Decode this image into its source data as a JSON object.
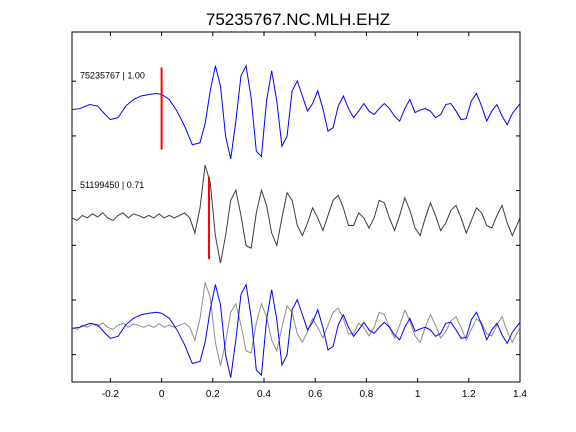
{
  "chart_data": {
    "type": "line",
    "title": "75235767.NC.MLH.EHZ",
    "xlabel": "",
    "ylabel": "",
    "xlim": [
      -0.35,
      1.4
    ],
    "xticks": [
      -0.2,
      0,
      0.2,
      0.4,
      0.6,
      0.8,
      1,
      1.2,
      1.4
    ],
    "xtick_labels": [
      "-0.2",
      "0",
      "0.2",
      "0.4",
      "0.6",
      "0.8",
      "1",
      "1.2",
      "1.4"
    ],
    "ylim": [
      0,
      6.4
    ],
    "yticks": [
      0.5,
      1.5,
      2.5,
      3.5,
      4.5,
      5.5,
      6.5
    ],
    "grid": false,
    "colors": {
      "blue": "#0000ff",
      "gray_dark": "#3c3c3c",
      "gray_light": "#8c8c8c",
      "pick": "#ff0000"
    },
    "traces": [
      {
        "label": "75235767 | 1.00",
        "id": "75235767",
        "correlation": 1.0,
        "baseline": 5.0,
        "color": "#0000ff",
        "pick_time": 0.0,
        "x": [
          -0.35,
          -0.32,
          -0.28,
          -0.25,
          -0.22,
          -0.2,
          -0.17,
          -0.14,
          -0.11,
          -0.08,
          -0.05,
          -0.02,
          0.0,
          0.03,
          0.06,
          0.09,
          0.12,
          0.15,
          0.17,
          0.19,
          0.21,
          0.23,
          0.25,
          0.27,
          0.29,
          0.31,
          0.33,
          0.35,
          0.37,
          0.39,
          0.41,
          0.43,
          0.45,
          0.47,
          0.49,
          0.51,
          0.53,
          0.55,
          0.57,
          0.59,
          0.61,
          0.63,
          0.65,
          0.67,
          0.69,
          0.71,
          0.73,
          0.75,
          0.77,
          0.79,
          0.81,
          0.83,
          0.85,
          0.87,
          0.89,
          0.91,
          0.93,
          0.95,
          0.97,
          0.99,
          1.01,
          1.03,
          1.05,
          1.07,
          1.09,
          1.11,
          1.13,
          1.15,
          1.17,
          1.19,
          1.21,
          1.23,
          1.25,
          1.27,
          1.29,
          1.31,
          1.33,
          1.35,
          1.37,
          1.4
        ],
        "y": [
          -0.02,
          0.0,
          0.08,
          0.05,
          -0.12,
          -0.22,
          -0.18,
          0.05,
          0.18,
          0.25,
          0.28,
          0.3,
          0.28,
          0.18,
          -0.05,
          -0.35,
          -0.72,
          -0.68,
          -0.3,
          0.35,
          0.85,
          0.45,
          -0.55,
          -1.0,
          -0.25,
          0.65,
          0.85,
          0.2,
          -0.85,
          -0.95,
          0.15,
          0.75,
          0.15,
          -0.75,
          -0.55,
          0.35,
          0.55,
          0.25,
          -0.05,
          0.1,
          0.35,
          0.0,
          -0.45,
          -0.38,
          0.05,
          0.25,
          0.0,
          -0.18,
          -0.05,
          0.1,
          -0.05,
          -0.12,
          0.0,
          0.1,
          0.0,
          -0.15,
          -0.25,
          0.0,
          0.18,
          -0.08,
          -0.03,
          0.0,
          -0.05,
          -0.18,
          -0.12,
          0.08,
          0.1,
          -0.05,
          -0.22,
          -0.2,
          0.15,
          0.3,
          0.05,
          -0.25,
          -0.05,
          0.08,
          -0.15,
          -0.32,
          -0.1,
          0.1
        ]
      },
      {
        "label": "51199450 | 0.71",
        "id": "51199450",
        "correlation": 0.71,
        "baseline": 3.0,
        "color": "#3c3c3c",
        "pick_time": 0.185,
        "x": [
          -0.35,
          -0.33,
          -0.31,
          -0.29,
          -0.27,
          -0.25,
          -0.23,
          -0.21,
          -0.19,
          -0.17,
          -0.15,
          -0.13,
          -0.11,
          -0.09,
          -0.07,
          -0.05,
          -0.03,
          -0.01,
          0.01,
          0.03,
          0.05,
          0.07,
          0.09,
          0.11,
          0.13,
          0.15,
          0.17,
          0.19,
          0.21,
          0.23,
          0.25,
          0.27,
          0.29,
          0.31,
          0.33,
          0.35,
          0.37,
          0.39,
          0.41,
          0.43,
          0.45,
          0.47,
          0.49,
          0.51,
          0.53,
          0.55,
          0.57,
          0.59,
          0.61,
          0.63,
          0.65,
          0.67,
          0.69,
          0.71,
          0.73,
          0.75,
          0.77,
          0.79,
          0.81,
          0.83,
          0.85,
          0.87,
          0.89,
          0.91,
          0.93,
          0.95,
          0.97,
          0.99,
          1.01,
          1.03,
          1.05,
          1.07,
          1.09,
          1.11,
          1.13,
          1.15,
          1.17,
          1.19,
          1.21,
          1.23,
          1.25,
          1.27,
          1.29,
          1.31,
          1.33,
          1.35,
          1.37,
          1.4
        ],
        "y": [
          0.0,
          -0.05,
          0.05,
          0.0,
          0.08,
          0.02,
          0.1,
          0.0,
          -0.05,
          0.05,
          0.1,
          0.0,
          0.08,
          0.05,
          0.0,
          0.05,
          0.0,
          0.08,
          0.0,
          0.05,
          0.0,
          0.05,
          0.1,
          0.0,
          -0.3,
          0.2,
          1.05,
          0.7,
          -0.35,
          -0.9,
          -0.35,
          0.35,
          0.55,
          0.05,
          -0.55,
          -0.6,
          0.1,
          0.55,
          0.25,
          -0.3,
          -0.55,
          0.0,
          0.5,
          0.35,
          -0.15,
          -0.35,
          -0.1,
          0.2,
          0.0,
          -0.25,
          0.05,
          0.35,
          0.45,
          0.2,
          -0.15,
          -0.15,
          0.1,
          0.0,
          -0.2,
          0.0,
          0.35,
          0.3,
          0.0,
          -0.25,
          0.05,
          0.4,
          0.15,
          -0.2,
          -0.35,
          0.0,
          0.3,
          0.05,
          -0.25,
          -0.1,
          0.15,
          0.25,
          0.0,
          -0.3,
          -0.05,
          0.2,
          0.1,
          -0.15,
          -0.2,
          0.05,
          0.25,
          -0.1,
          -0.35,
          0.0
        ]
      }
    ],
    "overlay": {
      "baseline": 1.0,
      "blue_scale": 1.0,
      "gray_scale": 0.85,
      "gray_shift": 0.185,
      "colors": {
        "blue": "#0000ff",
        "gray": "#8c8c8c"
      }
    }
  }
}
